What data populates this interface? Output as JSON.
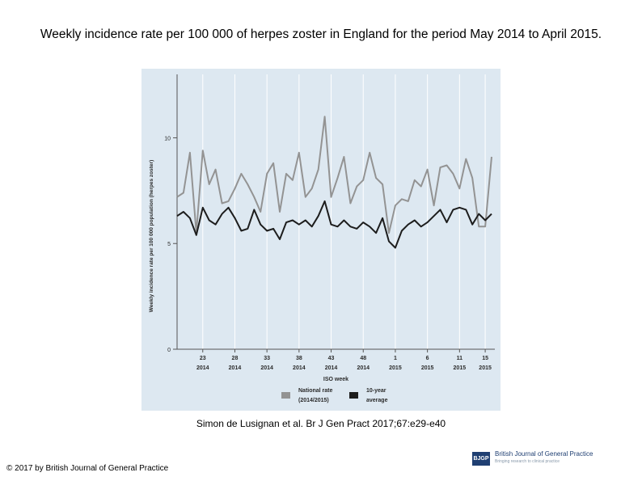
{
  "slide": {
    "title": "Weekly incidence rate per 100 000 of herpes zoster in England for the period May 2014 to April 2015.",
    "citation": "Simon de Lusignan et al. Br J Gen Pract 2017;67:e29-e40",
    "copyright": "© 2017 by British Journal of General Practice"
  },
  "logo": {
    "mark": "BJGP",
    "name": "British Journal of General Practice",
    "tagline": "Bringing research to clinical practice"
  },
  "colors": {
    "plot_bg": "#dde8f1",
    "grid": "#ffffff",
    "national": "#939393",
    "average": "#1d1d1d",
    "axis_text": "#2b2b2b"
  },
  "chart_data": {
    "type": "line",
    "title": "",
    "xlabel": "ISO week",
    "ylabel": "Weekly incidence rate per 100 000 population (herpes zoster)",
    "ylim": [
      0,
      13
    ],
    "xlim": [
      19,
      68.5
    ],
    "yticks": [
      0,
      5,
      10
    ],
    "x": [
      19,
      20,
      21,
      22,
      23,
      24,
      25,
      26,
      27,
      28,
      29,
      30,
      31,
      32,
      33,
      34,
      35,
      36,
      37,
      38,
      39,
      40,
      41,
      42,
      43,
      44,
      45,
      46,
      47,
      48,
      49,
      50,
      51,
      52,
      53,
      54,
      55,
      56,
      57,
      58,
      59,
      60,
      61,
      62,
      63,
      64,
      65,
      66,
      67,
      68
    ],
    "x_ticks": [
      {
        "x": 23,
        "week": "23",
        "year": "2014"
      },
      {
        "x": 28,
        "week": "28",
        "year": "2014"
      },
      {
        "x": 33,
        "week": "33",
        "year": "2014"
      },
      {
        "x": 38,
        "week": "38",
        "year": "2014"
      },
      {
        "x": 43,
        "week": "43",
        "year": "2014"
      },
      {
        "x": 48,
        "week": "48",
        "year": "2014"
      },
      {
        "x": 53,
        "week": "1",
        "year": "2015"
      },
      {
        "x": 58,
        "week": "6",
        "year": "2015"
      },
      {
        "x": 63,
        "week": "11",
        "year": "2015"
      },
      {
        "x": 67,
        "week": "15",
        "year": "2015"
      }
    ],
    "series": [
      {
        "name": "National rate (2014/2015)",
        "legend_line1": "National rate",
        "legend_line2": "(2014/2015)",
        "color": "#939393",
        "values": [
          7.2,
          7.4,
          9.3,
          5.5,
          9.4,
          7.8,
          8.5,
          6.9,
          7.0,
          7.6,
          8.3,
          7.8,
          7.2,
          6.5,
          8.3,
          8.8,
          6.5,
          8.3,
          8.0,
          9.3,
          7.2,
          7.6,
          8.5,
          11.0,
          7.2,
          8.1,
          9.1,
          6.9,
          7.7,
          8.0,
          9.3,
          8.1,
          7.8,
          5.5,
          6.8,
          7.1,
          7.0,
          8.0,
          7.7,
          8.5,
          6.8,
          8.6,
          8.7,
          8.3,
          7.6,
          9.0,
          8.1,
          5.8,
          5.8,
          9.1
        ]
      },
      {
        "name": "10-year average",
        "legend_line1": "10-year",
        "legend_line2": "average",
        "color": "#1d1d1d",
        "values": [
          6.3,
          6.5,
          6.2,
          5.4,
          6.7,
          6.1,
          5.9,
          6.4,
          6.7,
          6.2,
          5.6,
          5.7,
          6.6,
          5.9,
          5.6,
          5.7,
          5.2,
          6.0,
          6.1,
          5.9,
          6.1,
          5.8,
          6.3,
          7.0,
          5.9,
          5.8,
          6.1,
          5.8,
          5.7,
          6.0,
          5.8,
          5.5,
          6.2,
          5.1,
          4.8,
          5.6,
          5.9,
          6.1,
          5.8,
          6.0,
          6.3,
          6.6,
          6.0,
          6.6,
          6.7,
          6.6,
          5.9,
          6.4,
          6.1,
          6.4
        ]
      }
    ]
  }
}
